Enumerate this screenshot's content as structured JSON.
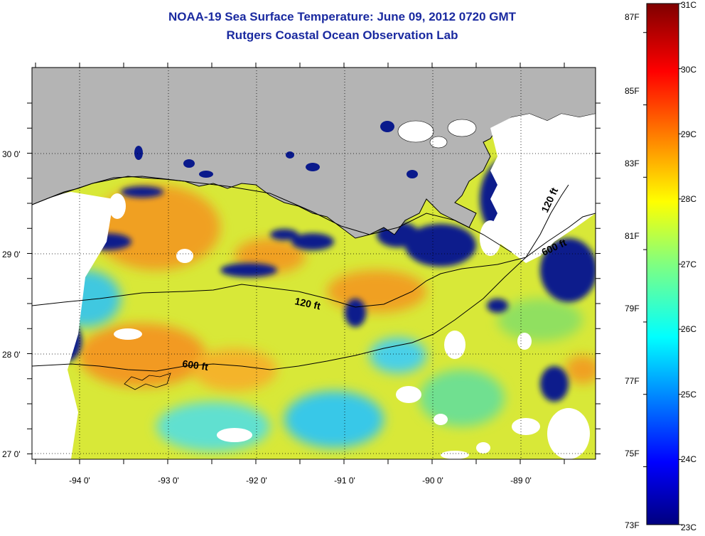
{
  "title_line1": "NOAA-19 Sea Surface Temperature:  June 09, 2012 0720 GMT",
  "title_line2": "Rutgers Coastal Ocean Observation Lab",
  "map": {
    "lat_labels": [
      "30 0'",
      "29 0'",
      "28 0'",
      "27 0'"
    ],
    "lon_labels": [
      "-94 0'",
      "-93 0'",
      "-92 0'",
      "-91 0'",
      "-90 0'",
      "-89 0'"
    ],
    "contours": [
      {
        "label": "120 ft"
      },
      {
        "label": "600 ft"
      },
      {
        "label": "120 ft"
      },
      {
        "label": "600 ft"
      }
    ],
    "colors": {
      "land": "#b4b4b4",
      "no_data": "#ffffff",
      "cold": "#0a1a8c",
      "warm": "#f0a020"
    }
  },
  "colorbar": {
    "fahrenheit_labels": [
      "87F",
      "85F",
      "83F",
      "81F",
      "79F",
      "77F",
      "75F",
      "73F"
    ],
    "celsius_labels": [
      "31C",
      "30C",
      "29C",
      "28C",
      "27C",
      "26C",
      "25C",
      "24C",
      "23C"
    ],
    "range_c": [
      23,
      31
    ],
    "colormap": "jet"
  }
}
